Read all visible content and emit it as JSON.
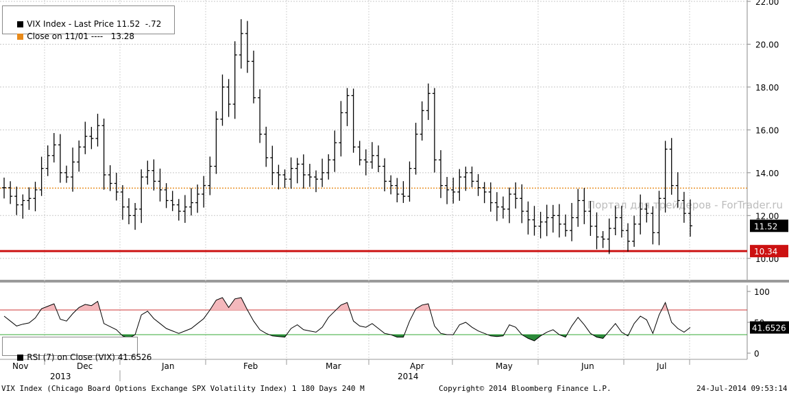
{
  "legend_top": {
    "item1": "VIX Index - Last Price 11.52  -.72",
    "item2": "Close on 11/01 ----   13.28"
  },
  "legend_rsi": {
    "item1": "RSI (7) on Close (VIX) 41.6526"
  },
  "colors": {
    "price": "#000000",
    "close_line": "#e88a1a",
    "support": "#cc1111",
    "overbought": "#cc3333",
    "oversold": "#33aa33",
    "fill_high": "#f4b8bc",
    "fill_low": "#2b8a3a",
    "last_badge": "#000000",
    "support_badge": "#cc1111"
  },
  "watermark": "Портал для трейдеров - ForTrader.ru",
  "footer": {
    "left": "VIX Index (Chicago Board Options Exchange SPX Volatility Index) 1 180 Days 240 M",
    "center": "Copyright© 2014 Bloomberg Finance L.P.",
    "right": "24-Jul-2014 09:53:14"
  },
  "chart_data": [
    {
      "type": "ohlc",
      "legend": [
        "VIX Index - Last Price 11.52  -.72",
        "Close on 11/01 ----   13.28"
      ],
      "ylim": [
        9.0,
        22.0
      ],
      "yticks": [
        "10.00",
        "12.00",
        "14.00",
        "16.00",
        "18.00",
        "20.00",
        "22.00"
      ],
      "xticks": [
        "Nov",
        "Dec",
        "Jan",
        "Feb",
        "Mar",
        "Apr",
        "May",
        "Jun",
        "Jul"
      ],
      "year_labels": [
        "2013",
        "2014"
      ],
      "reference_lines": [
        {
          "label": "Close on 11/01",
          "value": 13.28,
          "style": "dotted"
        },
        {
          "label": "",
          "value": 10.34,
          "style": "solid"
        }
      ],
      "badges": [
        {
          "label": "11.52",
          "value": 11.52
        },
        {
          "label": "10.34",
          "value": 10.34
        }
      ],
      "series": [
        {
          "name": "VIX Index - Last Price",
          "close": [
            13.3,
            12.9,
            12.5,
            12.7,
            12.8,
            13.2,
            14.2,
            14.8,
            15.3,
            14.0,
            13.8,
            14.5,
            15.2,
            15.7,
            15.6,
            16.2,
            13.9,
            13.5,
            13.1,
            12.4,
            12.0,
            12.3,
            13.8,
            14.1,
            13.6,
            13.2,
            12.7,
            12.5,
            12.2,
            12.4,
            12.6,
            13.0,
            13.4,
            14.3,
            16.5,
            18.0,
            17.2,
            19.5,
            20.5,
            19.2,
            17.5,
            15.8,
            14.7,
            14.0,
            13.9,
            13.7,
            14.2,
            14.4,
            13.9,
            13.8,
            13.7,
            14.0,
            14.6,
            15.4,
            16.8,
            17.6,
            15.2,
            14.6,
            14.5,
            14.8,
            14.3,
            13.6,
            13.4,
            13.0,
            12.9,
            14.2,
            15.8,
            16.9,
            17.7,
            14.6,
            13.4,
            13.2,
            13.1,
            13.8,
            14.0,
            13.6,
            13.3,
            13.1,
            12.6,
            12.4,
            12.3,
            13.0,
            12.8,
            12.2,
            11.8,
            11.5,
            11.7,
            11.9,
            12.0,
            11.6,
            11.3,
            11.9,
            12.7,
            12.2,
            11.5,
            11.0,
            10.9,
            11.4,
            11.9,
            11.3,
            10.8,
            11.6,
            12.3,
            12.1,
            11.2,
            12.8,
            15.1,
            13.4,
            12.7,
            12.1,
            11.52
          ],
          "last": 11.52
        }
      ]
    },
    {
      "type": "line",
      "legend": [
        "RSI (7) on Close (VIX) 41.6526"
      ],
      "ylim": [
        -10,
        110
      ],
      "yticks": [
        "0",
        "50",
        "100"
      ],
      "reference_lines": [
        {
          "value": 70,
          "label": ""
        },
        {
          "value": 30,
          "label": ""
        }
      ],
      "badges": [
        {
          "label": "41.6526",
          "value": 41.6526
        }
      ],
      "series": [
        {
          "name": "RSI (7) on Close (VIX)",
          "values": [
            60,
            52,
            44,
            47,
            49,
            57,
            72,
            76,
            80,
            55,
            52,
            64,
            74,
            79,
            77,
            84,
            48,
            43,
            38,
            28,
            24,
            30,
            62,
            68,
            56,
            48,
            40,
            36,
            32,
            36,
            40,
            48,
            56,
            70,
            86,
            90,
            74,
            88,
            90,
            70,
            52,
            38,
            32,
            28,
            27,
            26,
            40,
            46,
            38,
            36,
            34,
            42,
            58,
            68,
            78,
            82,
            52,
            44,
            42,
            48,
            40,
            32,
            30,
            26,
            26,
            52,
            72,
            78,
            80,
            44,
            32,
            30,
            30,
            46,
            50,
            42,
            36,
            32,
            28,
            27,
            28,
            46,
            42,
            30,
            24,
            20,
            28,
            34,
            38,
            30,
            26,
            44,
            58,
            46,
            32,
            26,
            24,
            36,
            48,
            34,
            28,
            48,
            60,
            54,
            32,
            62,
            82,
            50,
            40,
            34,
            41.65
          ],
          "last": 41.6526
        }
      ]
    }
  ]
}
